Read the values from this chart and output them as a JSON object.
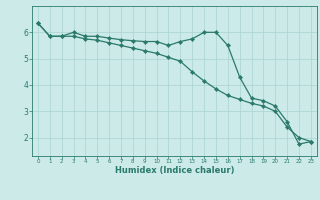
{
  "line1_x": [
    0,
    1,
    2,
    3,
    4,
    5,
    6,
    7,
    8,
    9,
    10,
    11,
    12,
    13,
    14,
    15,
    16,
    17,
    18,
    19,
    20,
    21,
    22,
    23
  ],
  "line1_y": [
    6.35,
    5.85,
    5.85,
    6.0,
    5.85,
    5.85,
    5.78,
    5.72,
    5.68,
    5.65,
    5.65,
    5.5,
    5.65,
    5.75,
    6.0,
    6.0,
    5.5,
    4.3,
    3.5,
    3.4,
    3.2,
    2.6,
    1.75,
    1.85
  ],
  "line2_x": [
    0,
    1,
    2,
    3,
    4,
    5,
    6,
    7,
    8,
    9,
    10,
    11,
    12,
    13,
    14,
    15,
    16,
    17,
    18,
    19,
    20,
    21,
    22,
    23
  ],
  "line2_y": [
    6.35,
    5.85,
    5.85,
    5.85,
    5.75,
    5.7,
    5.6,
    5.5,
    5.4,
    5.3,
    5.2,
    5.05,
    4.9,
    4.5,
    4.15,
    3.85,
    3.6,
    3.45,
    3.3,
    3.2,
    3.0,
    2.4,
    2.0,
    1.85
  ],
  "line_color": "#2a7a6a",
  "bg_color": "#cceae8",
  "grid_color": "#aad4d0",
  "xlabel": "Humidex (Indice chaleur)",
  "xlim": [
    -0.5,
    23.5
  ],
  "ylim": [
    1.3,
    7.0
  ],
  "yticks": [
    2,
    3,
    4,
    5,
    6
  ],
  "xticks": [
    0,
    1,
    2,
    3,
    4,
    5,
    6,
    7,
    8,
    9,
    10,
    11,
    12,
    13,
    14,
    15,
    16,
    17,
    18,
    19,
    20,
    21,
    22,
    23
  ],
  "marker": "D",
  "markersize": 2.2,
  "linewidth": 0.9
}
